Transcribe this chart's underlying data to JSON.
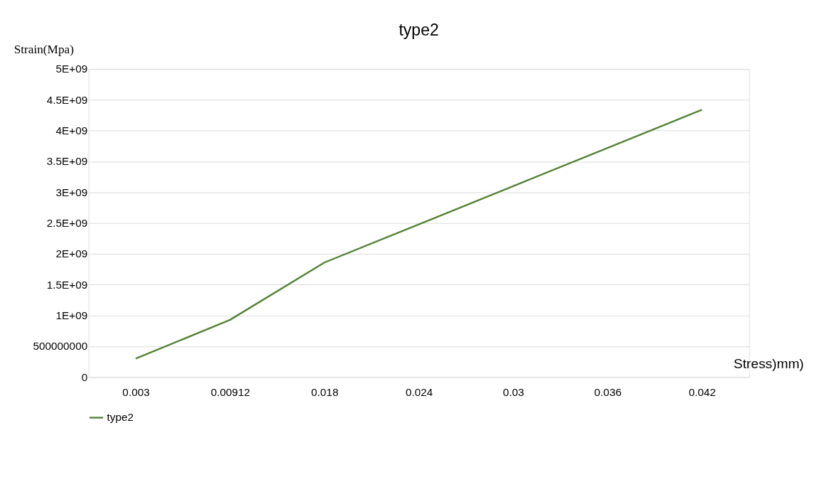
{
  "chart_data": {
    "type": "line",
    "title": "type2",
    "xlabel": "Stress)mm)",
    "ylabel": "Strain(Mpa)",
    "categories": [
      "0.003",
      "0.00912",
      "0.018",
      "0.024",
      "0.03",
      "0.036",
      "0.042"
    ],
    "series": [
      {
        "name": "type2",
        "color": "#548235",
        "values": [
          300000000,
          930000000,
          1860000000,
          2480000000,
          3100000000,
          3720000000,
          4340000000
        ]
      }
    ],
    "ylim": [
      0,
      5000000000
    ],
    "yticks": [
      0,
      500000000,
      {
        "value": 1000000000,
        "label": "1E+09"
      },
      {
        "value": 1500000000,
        "label": "1.5E+09"
      },
      {
        "value": 2000000000,
        "label": "2E+09"
      },
      {
        "value": 2500000000,
        "label": "2.5E+09"
      },
      {
        "value": 3000000000,
        "label": "3E+09"
      },
      {
        "value": 3500000000,
        "label": "3.5E+09"
      },
      {
        "value": 4000000000,
        "label": "4E+09"
      },
      {
        "value": 4500000000,
        "label": "4.5E+09"
      },
      {
        "value": 5000000000,
        "label": "5E+09"
      }
    ],
    "grid": "y",
    "legend": "bottom",
    "marker": "none",
    "line_style": "solid"
  }
}
